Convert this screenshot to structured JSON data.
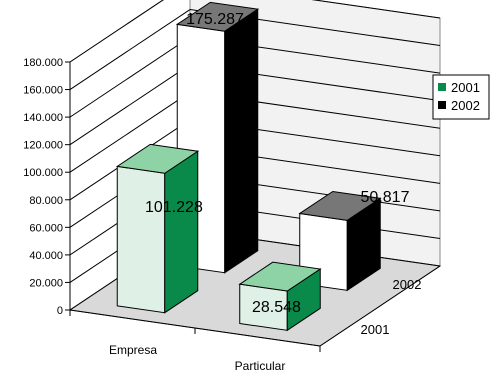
{
  "chart_data": {
    "type": "bar",
    "categories": [
      "Empresa",
      "Particular"
    ],
    "series": [
      {
        "name": "2001",
        "values": [
          101228,
          28548
        ],
        "color": "#0a8a4a",
        "label_values": [
          "101.228",
          "28.548"
        ]
      },
      {
        "name": "2002",
        "values": [
          175287,
          50817
        ],
        "color": "#000000",
        "label_values": [
          "175.287",
          "50.817"
        ]
      }
    ],
    "ylim": [
      0,
      180000
    ],
    "yticks": [
      0,
      20000,
      40000,
      60000,
      80000,
      100000,
      120000,
      140000,
      160000,
      180000
    ],
    "ytick_labels": [
      "0",
      "20.000",
      "40.000",
      "60.000",
      "80.000",
      "100.000",
      "120.000",
      "140.000",
      "160.000",
      "180.000"
    ],
    "depth_labels": [
      "2001",
      "2002"
    ],
    "title": "",
    "xlabel": "",
    "ylabel": "",
    "grid": true,
    "legend": "right",
    "colors": {
      "front_face_light": "#dff0e6",
      "gridline": "#000000",
      "floor": "#d9d9d9",
      "back_wall": "#f2f2f2"
    }
  }
}
